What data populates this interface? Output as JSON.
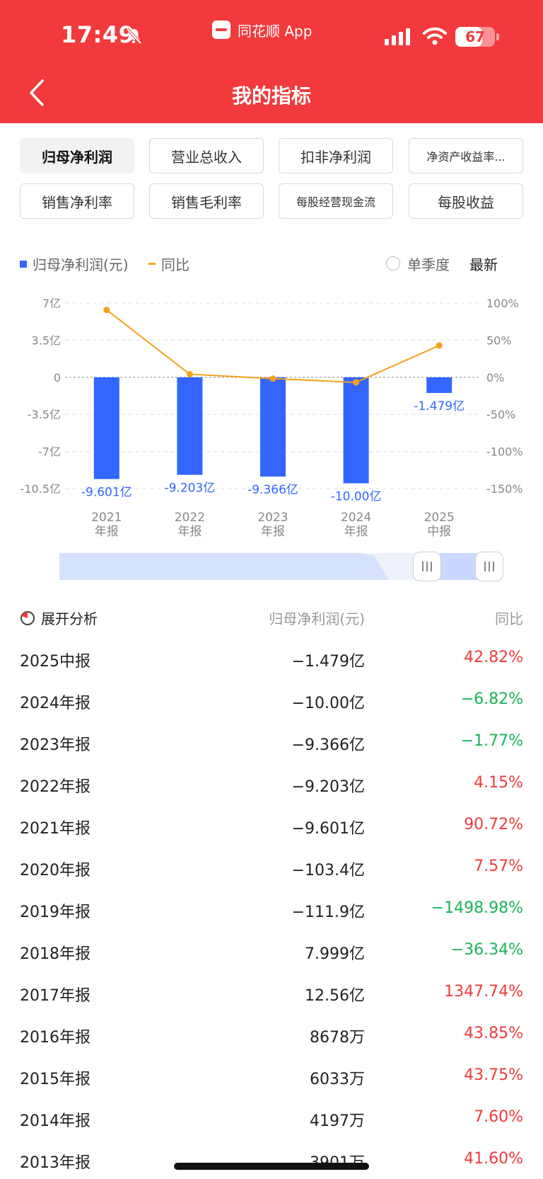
{
  "status_bar": {
    "time": "17:49",
    "app_name": "同花顺 App",
    "battery": "67"
  },
  "header": {
    "title": "我的指标"
  },
  "tabs": [
    {
      "label": "归母净利润",
      "active": true
    },
    {
      "label": "营业总收入",
      "active": false
    },
    {
      "label": "扣非净利润",
      "active": false
    },
    {
      "label": "净资产收益率...",
      "active": false
    },
    {
      "label": "销售净利率",
      "active": false
    },
    {
      "label": "销售毛利率",
      "active": false
    },
    {
      "label": "每股经营现金流",
      "active": false
    },
    {
      "label": "每股收益",
      "active": false
    }
  ],
  "legend": {
    "net_profit": "归母净利润(元)",
    "yoy": "同比",
    "single_quarter": "单季度",
    "latest": "最新"
  },
  "colors": {
    "accent": "#f23a3c",
    "bar": "#3366ff",
    "line": "#f5a11a",
    "up": "#f23a3c",
    "down": "#19b35a"
  },
  "chart_data": {
    "type": "bar",
    "categories": [
      {
        "year": "2021",
        "kind": "年报"
      },
      {
        "year": "2022",
        "kind": "年报"
      },
      {
        "year": "2023",
        "kind": "年报"
      },
      {
        "year": "2024",
        "kind": "年报"
      },
      {
        "year": "2025",
        "kind": "中报"
      }
    ],
    "series": [
      {
        "name": "归母净利润(元)",
        "type": "bar",
        "values": [
          -9.601,
          -9.203,
          -9.366,
          -10.0,
          -1.479
        ],
        "labels": [
          "-9.601亿",
          "-9.203亿",
          "-9.366亿",
          "-10.00亿",
          "-1.479亿"
        ]
      },
      {
        "name": "同比",
        "type": "line",
        "values": [
          90.72,
          4.15,
          -1.77,
          -6.82,
          42.82
        ]
      }
    ],
    "left_axis": {
      "min": -10.5,
      "max": 7,
      "ticks": [
        7,
        3.5,
        0,
        -3.5,
        -7,
        -10.5
      ],
      "tick_labels": [
        "7亿",
        "3.5亿",
        "0",
        "-3.5亿",
        "-7亿",
        "-10.5亿"
      ]
    },
    "right_axis": {
      "min": -150,
      "max": 100,
      "ticks": [
        100,
        50,
        0,
        -50,
        -100,
        -150
      ],
      "tick_labels": [
        "100%",
        "50%",
        "0%",
        "-50%",
        "-100%",
        "-150%"
      ]
    },
    "grid": true
  },
  "table": {
    "header": {
      "analysis": "展开分析",
      "value": "归母净利润(元)",
      "yoy": "同比"
    },
    "rows": [
      {
        "period": "2025中报",
        "value": "−1.479亿",
        "yoy": "42.82%",
        "dir": "up"
      },
      {
        "period": "2024年报",
        "value": "−10.00亿",
        "yoy": "−6.82%",
        "dir": "down"
      },
      {
        "period": "2023年报",
        "value": "−9.366亿",
        "yoy": "−1.77%",
        "dir": "down"
      },
      {
        "period": "2022年报",
        "value": "−9.203亿",
        "yoy": "4.15%",
        "dir": "up"
      },
      {
        "period": "2021年报",
        "value": "−9.601亿",
        "yoy": "90.72%",
        "dir": "up"
      },
      {
        "period": "2020年报",
        "value": "−103.4亿",
        "yoy": "7.57%",
        "dir": "up"
      },
      {
        "period": "2019年报",
        "value": "−111.9亿",
        "yoy": "−1498.98%",
        "dir": "down"
      },
      {
        "period": "2018年报",
        "value": "7.999亿",
        "yoy": "−36.34%",
        "dir": "down"
      },
      {
        "period": "2017年报",
        "value": "12.56亿",
        "yoy": "1347.74%",
        "dir": "up"
      },
      {
        "period": "2016年报",
        "value": "8678万",
        "yoy": "43.85%",
        "dir": "up"
      },
      {
        "period": "2015年报",
        "value": "6033万",
        "yoy": "43.75%",
        "dir": "up"
      },
      {
        "period": "2014年报",
        "value": "4197万",
        "yoy": "7.60%",
        "dir": "up"
      },
      {
        "period": "2013年报",
        "value": "3901万",
        "yoy": "41.60%",
        "dir": "up"
      }
    ]
  }
}
